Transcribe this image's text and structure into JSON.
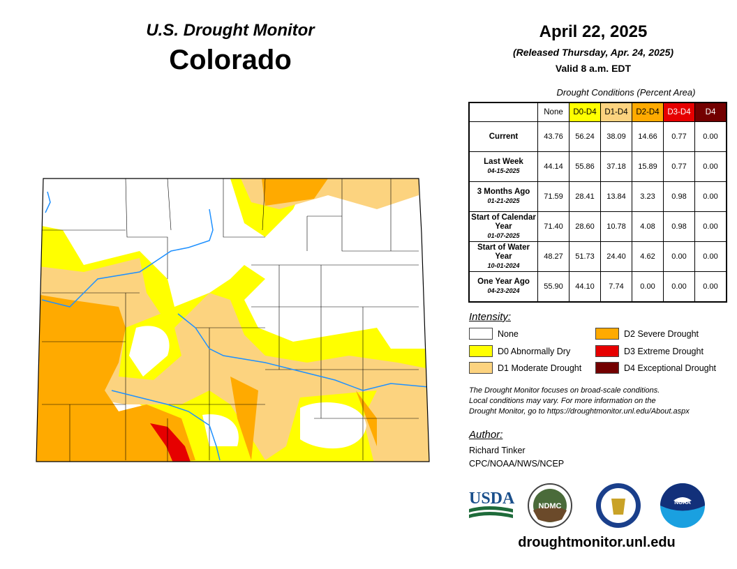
{
  "header": {
    "program": "U.S. Drought Monitor",
    "state": "Colorado",
    "date": "April 22, 2025",
    "released": "(Released Thursday, Apr. 24, 2025)",
    "valid": "Valid 8 a.m. EDT"
  },
  "table": {
    "caption": "Drought Conditions (Percent Area)",
    "columns": [
      {
        "label": "None",
        "color": "#FFFFFF",
        "text": "#000"
      },
      {
        "label": "D0-D4",
        "color": "#FFFF00",
        "text": "#000"
      },
      {
        "label": "D1-D4",
        "color": "#FCD37F",
        "text": "#000"
      },
      {
        "label": "D2-D4",
        "color": "#FFAA00",
        "text": "#000"
      },
      {
        "label": "D3-D4",
        "color": "#E60000",
        "text": "#fff"
      },
      {
        "label": "D4",
        "color": "#730000",
        "text": "#fff"
      }
    ],
    "rows": [
      {
        "label": "Current",
        "date": "",
        "values": [
          "43.76",
          "56.24",
          "38.09",
          "14.66",
          "0.77",
          "0.00"
        ]
      },
      {
        "label": "Last Week",
        "date": "04-15-2025",
        "values": [
          "44.14",
          "55.86",
          "37.18",
          "15.89",
          "0.77",
          "0.00"
        ]
      },
      {
        "label": "3 Months Ago",
        "date": "01-21-2025",
        "values": [
          "71.59",
          "28.41",
          "13.84",
          "3.23",
          "0.98",
          "0.00"
        ]
      },
      {
        "label": "Start of Calendar Year",
        "date": "01-07-2025",
        "values": [
          "71.40",
          "28.60",
          "10.78",
          "4.08",
          "0.98",
          "0.00"
        ]
      },
      {
        "label": "Start of Water Year",
        "date": "10-01-2024",
        "values": [
          "48.27",
          "51.73",
          "24.40",
          "4.62",
          "0.00",
          "0.00"
        ]
      },
      {
        "label": "One Year Ago",
        "date": "04-23-2024",
        "values": [
          "55.90",
          "44.10",
          "7.74",
          "0.00",
          "0.00",
          "0.00"
        ]
      }
    ]
  },
  "legend": {
    "title": "Intensity:",
    "items": [
      {
        "label": "None",
        "color": "#FFFFFF"
      },
      {
        "label": "D0 Abnormally Dry",
        "color": "#FFFF00"
      },
      {
        "label": "D1 Moderate Drought",
        "color": "#FCD37F"
      },
      {
        "label": "D2 Severe Drought",
        "color": "#FFAA00"
      },
      {
        "label": "D3 Extreme Drought",
        "color": "#E60000"
      },
      {
        "label": "D4 Exceptional Drought",
        "color": "#730000"
      }
    ]
  },
  "note": [
    "The Drought Monitor focuses on broad-scale conditions.",
    "Local conditions may vary. For more information on the",
    "Drought Monitor, go to https://droughtmonitor.unl.edu/About.aspx"
  ],
  "author": {
    "title": "Author:",
    "name": "Richard Tinker",
    "org": "CPC/NOAA/NWS/NCEP"
  },
  "logos": {
    "usda": "USDA",
    "ndmc": "NDMC",
    "noaa": "NOAA"
  },
  "footer_url": "droughtmonitor.unl.edu"
}
